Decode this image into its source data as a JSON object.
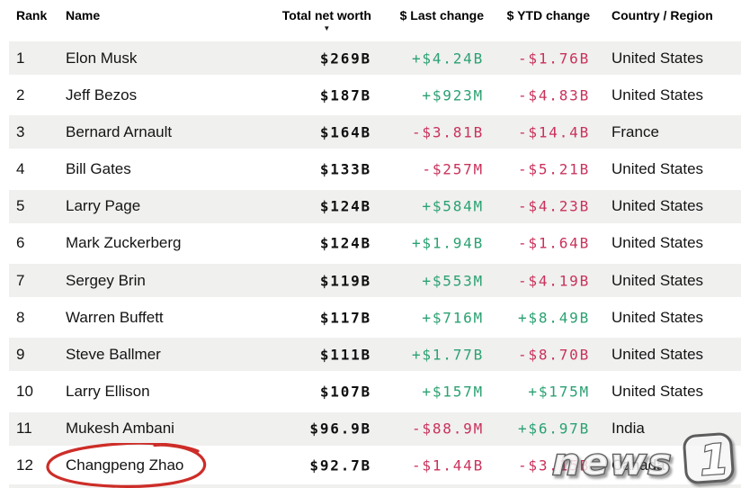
{
  "header": {
    "sort_icon": "▼",
    "columns": [
      {
        "key": "rank",
        "label": "Rank"
      },
      {
        "key": "name",
        "label": "Name"
      },
      {
        "key": "net_worth",
        "label": "Total net worth",
        "sorted": "descending"
      },
      {
        "key": "last_change",
        "label": "$ Last change"
      },
      {
        "key": "ytd_change",
        "label": "$ YTD change"
      },
      {
        "key": "country",
        "label": "Country / Region"
      }
    ]
  },
  "rows": [
    {
      "rank": "1",
      "name": "Elon Musk",
      "net_worth": "$269B",
      "last_change": "+$4.24B",
      "ytd_change": "-$1.76B",
      "country": "United States"
    },
    {
      "rank": "2",
      "name": "Jeff Bezos",
      "net_worth": "$187B",
      "last_change": "+$923M",
      "ytd_change": "-$4.83B",
      "country": "United States"
    },
    {
      "rank": "3",
      "name": "Bernard Arnault",
      "net_worth": "$164B",
      "last_change": "-$3.81B",
      "ytd_change": "-$14.4B",
      "country": "France"
    },
    {
      "rank": "4",
      "name": "Bill Gates",
      "net_worth": "$133B",
      "last_change": "-$257M",
      "ytd_change": "-$5.21B",
      "country": "United States"
    },
    {
      "rank": "5",
      "name": "Larry Page",
      "net_worth": "$124B",
      "last_change": "+$584M",
      "ytd_change": "-$4.23B",
      "country": "United States"
    },
    {
      "rank": "6",
      "name": "Mark Zuckerberg",
      "net_worth": "$124B",
      "last_change": "+$1.94B",
      "ytd_change": "-$1.64B",
      "country": "United States"
    },
    {
      "rank": "7",
      "name": "Sergey Brin",
      "net_worth": "$119B",
      "last_change": "+$553M",
      "ytd_change": "-$4.19B",
      "country": "United States"
    },
    {
      "rank": "8",
      "name": "Warren Buffett",
      "net_worth": "$117B",
      "last_change": "+$716M",
      "ytd_change": "+$8.49B",
      "country": "United States"
    },
    {
      "rank": "9",
      "name": "Steve Ballmer",
      "net_worth": "$111B",
      "last_change": "+$1.77B",
      "ytd_change": "-$8.70B",
      "country": "United States"
    },
    {
      "rank": "10",
      "name": "Larry Ellison",
      "net_worth": "$107B",
      "last_change": "+$157M",
      "ytd_change": "+$175M",
      "country": "United States"
    },
    {
      "rank": "11",
      "name": "Mukesh Ambani",
      "net_worth": "$96.9B",
      "last_change": "-$88.9M",
      "ytd_change": "+$6.97B",
      "country": "India"
    },
    {
      "rank": "12",
      "name": "Changpeng Zhao",
      "net_worth": "$92.7B",
      "last_change": "-$1.44B",
      "ytd_change": "-$3.15B",
      "country": "Canada"
    }
  ],
  "annotation": {
    "shape": "hand-drawn-ellipse",
    "around": "Changpeng Zhao",
    "color": "#cd2d28"
  },
  "watermark": {
    "text_main": "news",
    "text_badge": "1"
  },
  "colors": {
    "positive": "#2ba172",
    "negative": "#c9325b",
    "row_stripe": "#f0f0ef",
    "annotation": "#cd2d28",
    "header_text": "#000000",
    "body_text": "#141414"
  }
}
